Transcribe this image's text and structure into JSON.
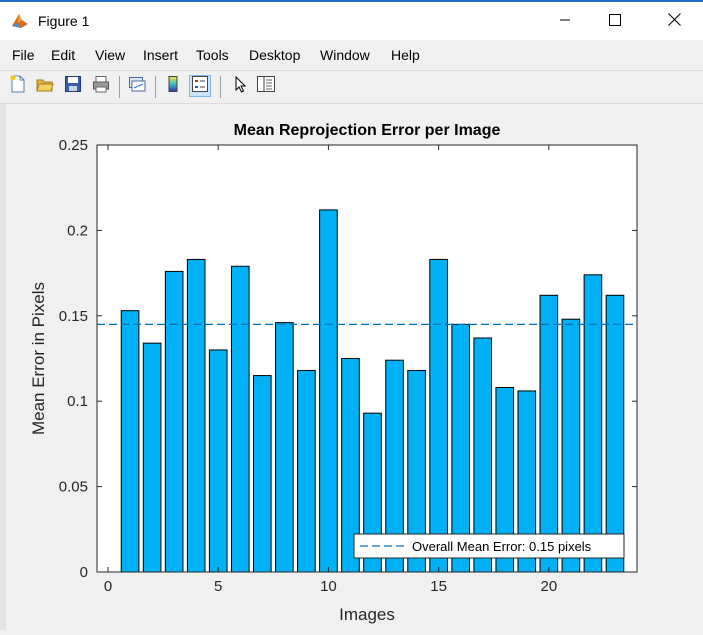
{
  "window": {
    "title": "Figure 1",
    "minimize_icon": "minimize-icon",
    "maximize_icon": "maximize-icon",
    "close_icon": "close-icon"
  },
  "menu": {
    "items": [
      "File",
      "Edit",
      "View",
      "Insert",
      "Tools",
      "Desktop",
      "Window",
      "Help"
    ]
  },
  "toolbar": {
    "icons": [
      "new-figure-icon",
      "open-file-icon",
      "save-icon",
      "print-icon",
      "link-plot-icon",
      "insert-colorbar-icon",
      "insert-legend-icon",
      "edit-plot-icon",
      "property-inspector-icon"
    ]
  },
  "colors": {
    "bar": "#00b2f5",
    "mean_line": "#0072bd",
    "accent": "#1f6fc7"
  },
  "chart_data": {
    "type": "bar",
    "title": "Mean Reprojection Error per Image",
    "xlabel": "Images",
    "ylabel": "Mean Error in Pixels",
    "xlim": [
      -0.5,
      24
    ],
    "ylim": [
      0,
      0.25
    ],
    "xticks": [
      0,
      5,
      10,
      15,
      20
    ],
    "yticks": [
      0,
      0.05,
      0.1,
      0.15,
      0.2,
      0.25
    ],
    "ytick_labels": [
      "0",
      "0.05",
      "0.1",
      "0.15",
      "0.2",
      "0.25"
    ],
    "x": [
      1,
      2,
      3,
      4,
      5,
      6,
      7,
      8,
      9,
      10,
      11,
      12,
      13,
      14,
      15,
      16,
      17,
      18,
      19,
      20,
      21,
      22,
      23
    ],
    "values": [
      0.153,
      0.134,
      0.176,
      0.183,
      0.13,
      0.179,
      0.115,
      0.146,
      0.118,
      0.212,
      0.125,
      0.093,
      0.124,
      0.118,
      0.183,
      0.145,
      0.137,
      0.108,
      0.106,
      0.162,
      0.148,
      0.174,
      0.162
    ],
    "overall_mean": 0.145,
    "legend": {
      "label": "Overall Mean Error: 0.15 pixels",
      "position": "bottom-right"
    }
  }
}
